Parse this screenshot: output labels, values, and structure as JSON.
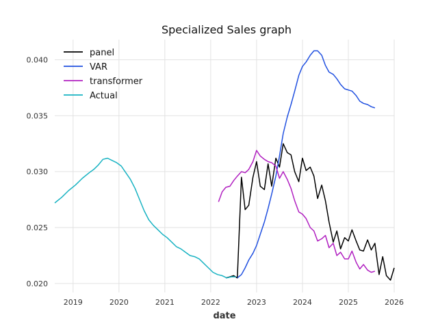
{
  "chart_data": {
    "type": "line",
    "title": "Specialized Sales graph",
    "xlabel": "date",
    "ylabel": "",
    "xlim": [
      2018.6,
      2026.0
    ],
    "ylim": [
      0.0192,
      0.0418
    ],
    "x_ticks": [
      2019,
      2020,
      2021,
      2022,
      2023,
      2024,
      2025,
      2026
    ],
    "x_tick_labels": [
      "2019",
      "2020",
      "2021",
      "2022",
      "2023",
      "2024",
      "2025",
      "2026"
    ],
    "y_ticks": [
      0.02,
      0.025,
      0.03,
      0.035,
      0.04
    ],
    "y_tick_labels": [
      "0.020",
      "0.025",
      "0.030",
      "0.035",
      "0.040"
    ],
    "grid": true,
    "legend_position": "top-left",
    "series": [
      {
        "name": "panel",
        "color": "#000000",
        "points": [
          [
            2022.33,
            0.0205
          ],
          [
            2022.42,
            0.0206
          ],
          [
            2022.5,
            0.0207
          ],
          [
            2022.58,
            0.0205
          ],
          [
            2022.67,
            0.0295
          ],
          [
            2022.75,
            0.0266
          ],
          [
            2022.83,
            0.027
          ],
          [
            2022.92,
            0.0295
          ],
          [
            2023.0,
            0.0309
          ],
          [
            2023.08,
            0.0287
          ],
          [
            2023.17,
            0.0284
          ],
          [
            2023.25,
            0.0307
          ],
          [
            2023.33,
            0.0287
          ],
          [
            2023.42,
            0.0312
          ],
          [
            2023.5,
            0.0304
          ],
          [
            2023.58,
            0.0325
          ],
          [
            2023.67,
            0.0317
          ],
          [
            2023.75,
            0.0315
          ],
          [
            2023.83,
            0.03
          ],
          [
            2023.92,
            0.0291
          ],
          [
            2024.0,
            0.0312
          ],
          [
            2024.08,
            0.0301
          ],
          [
            2024.17,
            0.0304
          ],
          [
            2024.25,
            0.0296
          ],
          [
            2024.33,
            0.0276
          ],
          [
            2024.42,
            0.0288
          ],
          [
            2024.5,
            0.0274
          ],
          [
            2024.58,
            0.0255
          ],
          [
            2024.67,
            0.0237
          ],
          [
            2024.75,
            0.0247
          ],
          [
            2024.83,
            0.0231
          ],
          [
            2024.92,
            0.0241
          ],
          [
            2025.0,
            0.0238
          ],
          [
            2025.08,
            0.0248
          ],
          [
            2025.17,
            0.0238
          ],
          [
            2025.25,
            0.023
          ],
          [
            2025.33,
            0.0229
          ],
          [
            2025.42,
            0.0239
          ],
          [
            2025.5,
            0.023
          ],
          [
            2025.58,
            0.0236
          ],
          [
            2025.67,
            0.0208
          ],
          [
            2025.75,
            0.0224
          ],
          [
            2025.83,
            0.0207
          ],
          [
            2025.92,
            0.0203
          ],
          [
            2026.0,
            0.0214
          ]
        ]
      },
      {
        "name": "VAR",
        "color": "#1f4fe0",
        "points": [
          [
            2022.58,
            0.0205
          ],
          [
            2022.67,
            0.0208
          ],
          [
            2022.75,
            0.0214
          ],
          [
            2022.83,
            0.0221
          ],
          [
            2022.92,
            0.0227
          ],
          [
            2023.0,
            0.0234
          ],
          [
            2023.08,
            0.0244
          ],
          [
            2023.17,
            0.0255
          ],
          [
            2023.25,
            0.0267
          ],
          [
            2023.33,
            0.028
          ],
          [
            2023.42,
            0.0296
          ],
          [
            2023.5,
            0.0314
          ],
          [
            2023.58,
            0.0334
          ],
          [
            2023.67,
            0.0349
          ],
          [
            2023.75,
            0.036
          ],
          [
            2023.83,
            0.0372
          ],
          [
            2023.92,
            0.0386
          ],
          [
            2024.0,
            0.0394
          ],
          [
            2024.08,
            0.0398
          ],
          [
            2024.17,
            0.0404
          ],
          [
            2024.25,
            0.0408
          ],
          [
            2024.33,
            0.0408
          ],
          [
            2024.42,
            0.0404
          ],
          [
            2024.5,
            0.0395
          ],
          [
            2024.58,
            0.0389
          ],
          [
            2024.67,
            0.0387
          ],
          [
            2024.75,
            0.0383
          ],
          [
            2024.83,
            0.0378
          ],
          [
            2024.92,
            0.0374
          ],
          [
            2025.0,
            0.0373
          ],
          [
            2025.08,
            0.0372
          ],
          [
            2025.17,
            0.0368
          ],
          [
            2025.25,
            0.0363
          ],
          [
            2025.33,
            0.0361
          ],
          [
            2025.42,
            0.036
          ],
          [
            2025.5,
            0.0358
          ],
          [
            2025.58,
            0.0357
          ]
        ]
      },
      {
        "name": "transformer",
        "color": "#b01ec0",
        "points": [
          [
            2022.17,
            0.0273
          ],
          [
            2022.25,
            0.0282
          ],
          [
            2022.33,
            0.0286
          ],
          [
            2022.42,
            0.0287
          ],
          [
            2022.5,
            0.0292
          ],
          [
            2022.58,
            0.0296
          ],
          [
            2022.67,
            0.03
          ],
          [
            2022.75,
            0.0299
          ],
          [
            2022.83,
            0.0302
          ],
          [
            2022.92,
            0.0309
          ],
          [
            2023.0,
            0.0319
          ],
          [
            2023.08,
            0.0314
          ],
          [
            2023.17,
            0.0311
          ],
          [
            2023.25,
            0.0309
          ],
          [
            2023.33,
            0.0308
          ],
          [
            2023.42,
            0.0305
          ],
          [
            2023.5,
            0.0294
          ],
          [
            2023.58,
            0.03
          ],
          [
            2023.67,
            0.0293
          ],
          [
            2023.75,
            0.0285
          ],
          [
            2023.83,
            0.0274
          ],
          [
            2023.92,
            0.0264
          ],
          [
            2024.0,
            0.0262
          ],
          [
            2024.08,
            0.0258
          ],
          [
            2024.17,
            0.025
          ],
          [
            2024.25,
            0.0247
          ],
          [
            2024.33,
            0.0238
          ],
          [
            2024.42,
            0.024
          ],
          [
            2024.5,
            0.0243
          ],
          [
            2024.58,
            0.0232
          ],
          [
            2024.67,
            0.0236
          ],
          [
            2024.75,
            0.0225
          ],
          [
            2024.83,
            0.0228
          ],
          [
            2024.92,
            0.0222
          ],
          [
            2025.0,
            0.0222
          ],
          [
            2025.08,
            0.0229
          ],
          [
            2025.17,
            0.0219
          ],
          [
            2025.25,
            0.0213
          ],
          [
            2025.33,
            0.0217
          ],
          [
            2025.42,
            0.0212
          ],
          [
            2025.5,
            0.021
          ],
          [
            2025.58,
            0.0211
          ]
        ]
      },
      {
        "name": "Actual",
        "color": "#17b2c2",
        "points": [
          [
            2018.6,
            0.0272
          ],
          [
            2018.75,
            0.0277
          ],
          [
            2018.9,
            0.0283
          ],
          [
            2019.05,
            0.0288
          ],
          [
            2019.2,
            0.0294
          ],
          [
            2019.35,
            0.0299
          ],
          [
            2019.45,
            0.0302
          ],
          [
            2019.55,
            0.0306
          ],
          [
            2019.65,
            0.0311
          ],
          [
            2019.75,
            0.0312
          ],
          [
            2019.85,
            0.031
          ],
          [
            2019.95,
            0.0308
          ],
          [
            2020.05,
            0.0305
          ],
          [
            2020.15,
            0.0299
          ],
          [
            2020.25,
            0.0293
          ],
          [
            2020.35,
            0.0285
          ],
          [
            2020.45,
            0.0275
          ],
          [
            2020.55,
            0.0265
          ],
          [
            2020.65,
            0.0257
          ],
          [
            2020.75,
            0.0252
          ],
          [
            2020.85,
            0.0248
          ],
          [
            2020.95,
            0.0244
          ],
          [
            2021.05,
            0.0241
          ],
          [
            2021.15,
            0.0237
          ],
          [
            2021.25,
            0.0233
          ],
          [
            2021.35,
            0.0231
          ],
          [
            2021.45,
            0.0228
          ],
          [
            2021.55,
            0.0225
          ],
          [
            2021.65,
            0.0224
          ],
          [
            2021.75,
            0.0222
          ],
          [
            2021.85,
            0.0218
          ],
          [
            2021.95,
            0.0214
          ],
          [
            2022.05,
            0.021
          ],
          [
            2022.15,
            0.0208
          ],
          [
            2022.25,
            0.0207
          ],
          [
            2022.35,
            0.0205
          ],
          [
            2022.45,
            0.0206
          ],
          [
            2022.55,
            0.0206
          ]
        ]
      }
    ]
  }
}
